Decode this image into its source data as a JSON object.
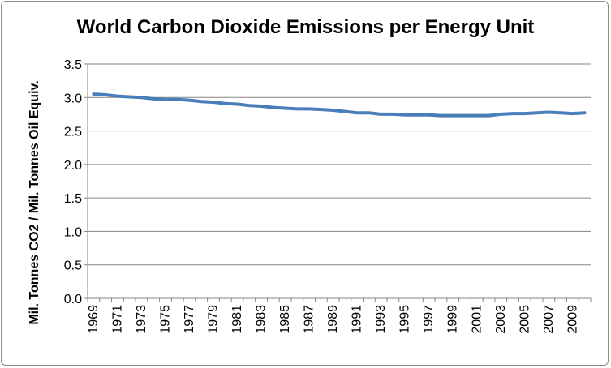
{
  "chart_data": {
    "type": "line",
    "title": "World Carbon Dioxide Emissions per Energy Unit",
    "xlabel": "",
    "ylabel": "Mil. Tonnes CO2 / Mil. Tonnes Oil Equiv.",
    "ylim": [
      0,
      3.5
    ],
    "yticks": [
      "0.0",
      "0.5",
      "1.0",
      "1.5",
      "2.0",
      "2.5",
      "3.0",
      "3.5"
    ],
    "xtick_labels": [
      "1969",
      "1971",
      "1973",
      "1975",
      "1977",
      "1979",
      "1981",
      "1983",
      "1985",
      "1987",
      "1989",
      "1991",
      "1993",
      "1995",
      "1997",
      "1999",
      "2001",
      "2003",
      "2005",
      "2007",
      "2009"
    ],
    "grid": "horizontal",
    "legend": "none",
    "x": [
      1969,
      1970,
      1971,
      1972,
      1973,
      1974,
      1975,
      1976,
      1977,
      1978,
      1979,
      1980,
      1981,
      1982,
      1983,
      1984,
      1985,
      1986,
      1987,
      1988,
      1989,
      1990,
      1991,
      1992,
      1993,
      1994,
      1995,
      1996,
      1997,
      1998,
      1999,
      2000,
      2001,
      2002,
      2003,
      2004,
      2005,
      2006,
      2007,
      2008,
      2009,
      2010
    ],
    "series": [
      {
        "values": [
          3.05,
          3.04,
          3.02,
          3.01,
          3.0,
          2.98,
          2.97,
          2.97,
          2.96,
          2.94,
          2.93,
          2.91,
          2.9,
          2.88,
          2.87,
          2.85,
          2.84,
          2.83,
          2.83,
          2.82,
          2.81,
          2.79,
          2.77,
          2.77,
          2.75,
          2.75,
          2.74,
          2.74,
          2.74,
          2.73,
          2.73,
          2.73,
          2.73,
          2.73,
          2.75,
          2.76,
          2.76,
          2.77,
          2.78,
          2.77,
          2.76,
          2.77
        ],
        "color": "#4a7ebb"
      }
    ]
  }
}
